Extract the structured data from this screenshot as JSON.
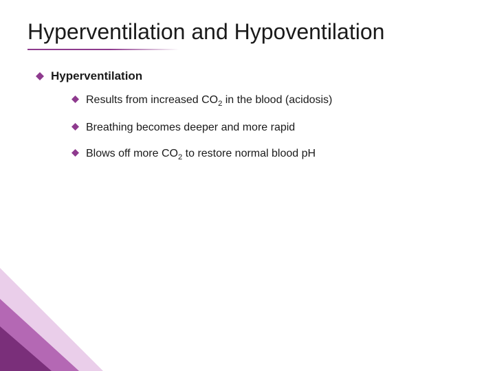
{
  "colors": {
    "bullet": "#8e3a8e",
    "text": "#1a1a1a",
    "underline": "#8e3a8e",
    "decor_dark": "#7a2f7a",
    "decor_mid": "#a64fa6",
    "decor_light": "#d9a6d9",
    "background": "#ffffff"
  },
  "layout": {
    "title_fontsize": 32,
    "lvl1_fontsize": 17,
    "lvl2_fontsize": 16,
    "underline_width": 220,
    "bullet_size": 12
  },
  "title": "Hyperventilation and Hypoventilation",
  "lvl1": {
    "label": "Hyperventilation",
    "items": [
      {
        "html": "Results from increased CO<sub>2</sub> in the blood (acidosis)"
      },
      {
        "html": "Breathing becomes deeper and more rapid"
      },
      {
        "html": "Blows off more CO<sub>2</sub> to restore normal blood pH"
      }
    ]
  }
}
